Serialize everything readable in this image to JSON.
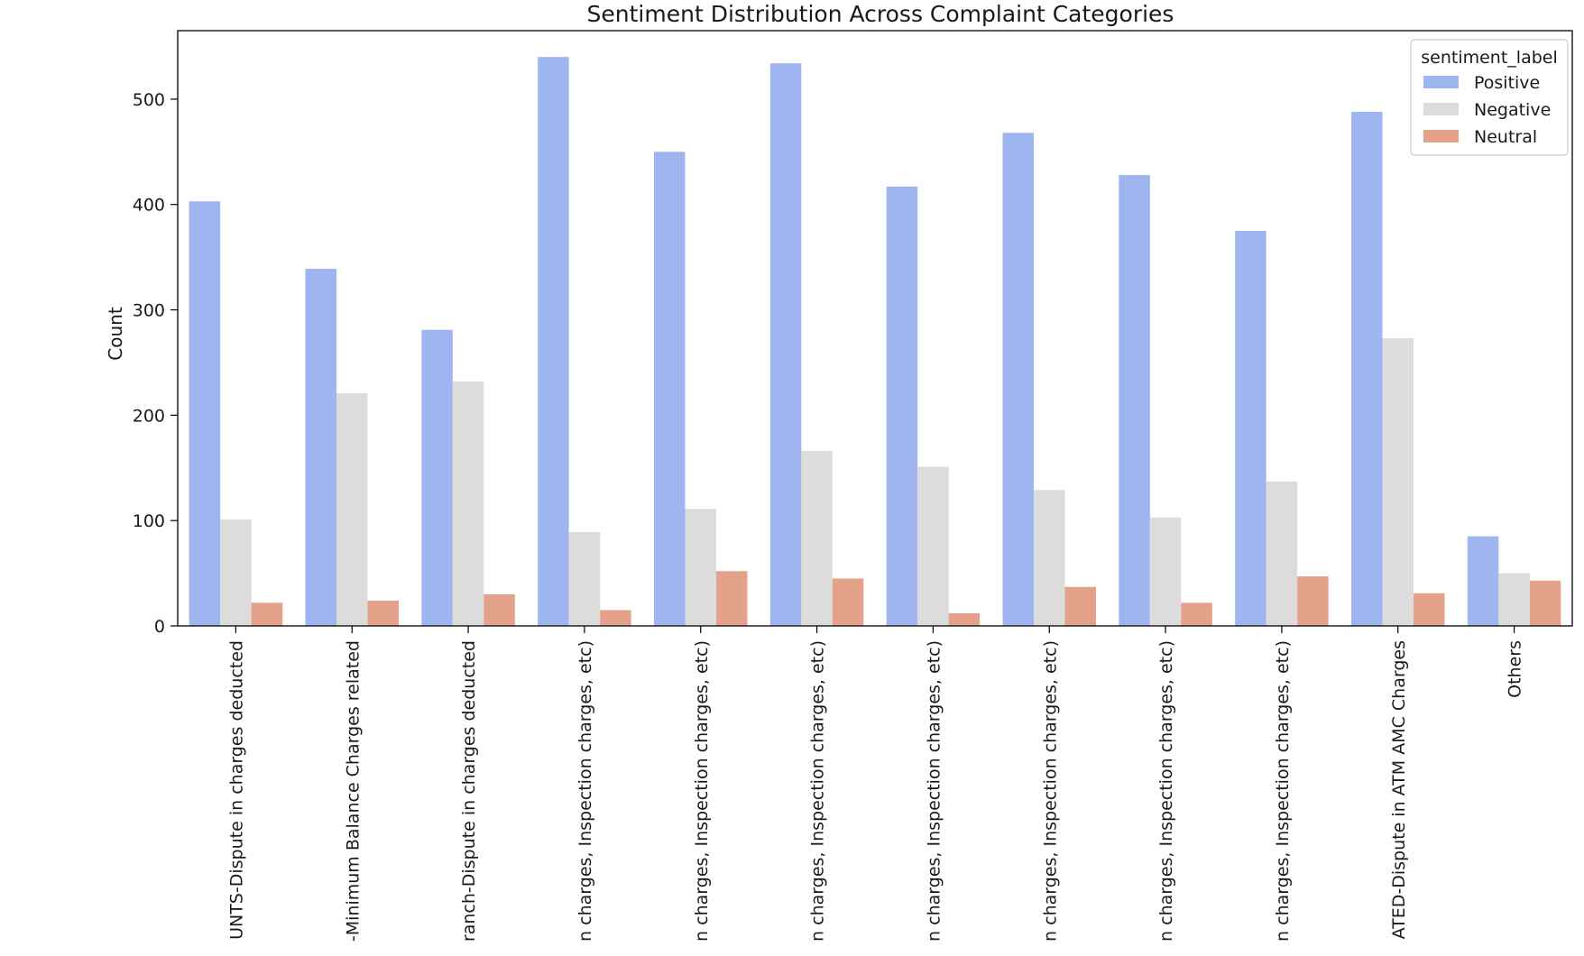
{
  "chart_data": {
    "type": "bar",
    "title": "Sentiment Distribution Across Complaint Categories",
    "xlabel": "",
    "ylabel": "Count",
    "ylim": [
      0,
      565
    ],
    "yticks": [
      0,
      100,
      200,
      300,
      400,
      500
    ],
    "grid": false,
    "legend": {
      "title": "sentiment_label",
      "placement": "top-right"
    },
    "categories": [
      "UNTS-Dispute in charges deducted",
      "-Minimum Balance Charges related",
      "ranch-Dispute in charges deducted",
      "n charges, Inspection charges, etc)",
      "n charges, Inspection charges, etc)",
      "n charges, Inspection charges, etc)",
      "n charges, Inspection charges, etc)",
      "n charges, Inspection charges, etc)",
      "n charges, Inspection charges, etc)",
      "n charges, Inspection charges, etc)",
      "ATED-Dispute in ATM AMC Charges",
      "Others"
    ],
    "series": [
      {
        "name": "Positive",
        "color": "#9fb5f0",
        "values": [
          403,
          339,
          281,
          540,
          450,
          534,
          417,
          468,
          428,
          375,
          488,
          85
        ]
      },
      {
        "name": "Negative",
        "color": "#dcdcdc",
        "values": [
          101,
          221,
          232,
          89,
          111,
          166,
          151,
          129,
          103,
          137,
          273,
          50
        ]
      },
      {
        "name": "Neutral",
        "color": "#e4a28a",
        "values": [
          22,
          24,
          30,
          15,
          52,
          45,
          12,
          37,
          22,
          47,
          31,
          43
        ]
      }
    ]
  }
}
